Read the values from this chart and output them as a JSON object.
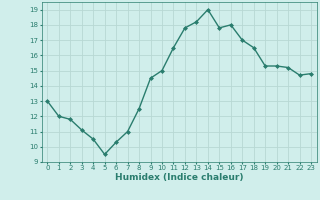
{
  "x": [
    0,
    1,
    2,
    3,
    4,
    5,
    6,
    7,
    8,
    9,
    10,
    11,
    12,
    13,
    14,
    15,
    16,
    17,
    18,
    19,
    20,
    21,
    22,
    23
  ],
  "y": [
    13.0,
    12.0,
    11.8,
    11.1,
    10.5,
    9.5,
    10.3,
    11.0,
    12.5,
    14.5,
    15.0,
    16.5,
    17.8,
    18.2,
    19.0,
    17.8,
    18.0,
    17.0,
    16.5,
    15.3,
    15.3,
    15.2,
    14.7,
    14.8
  ],
  "xlabel": "Humidex (Indice chaleur)",
  "ylim": [
    9,
    19.5
  ],
  "xlim": [
    -0.5,
    23.5
  ],
  "yticks": [
    9,
    10,
    11,
    12,
    13,
    14,
    15,
    16,
    17,
    18,
    19
  ],
  "xticks": [
    0,
    1,
    2,
    3,
    4,
    5,
    6,
    7,
    8,
    9,
    10,
    11,
    12,
    13,
    14,
    15,
    16,
    17,
    18,
    19,
    20,
    21,
    22,
    23
  ],
  "line_color": "#2a7d6e",
  "marker_color": "#2a7d6e",
  "bg_color": "#d0eeeb",
  "grid_color": "#b8d8d4",
  "xlabel_color": "#2a7d6e",
  "tick_color": "#2a7d6e",
  "marker": "D",
  "markersize": 2.0,
  "linewidth": 1.0,
  "xlabel_fontsize": 6.5,
  "tick_fontsize": 5.0
}
